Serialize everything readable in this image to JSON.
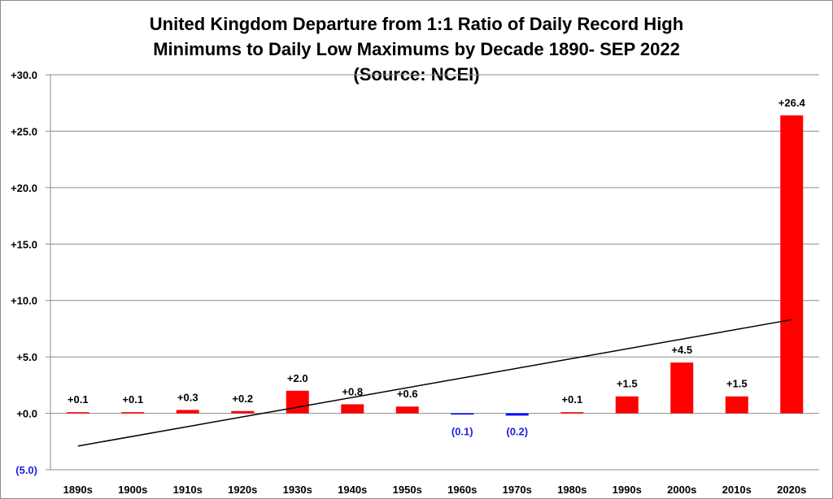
{
  "chart_data": {
    "type": "bar",
    "title_lines": [
      "United Kingdom Departure from 1:1 Ratio of Daily Record High",
      "Minimums to Daily Low Maximums by Decade 1890- SEP 2022",
      "(Source: NCEI)"
    ],
    "categories": [
      "1890s",
      "1900s",
      "1910s",
      "1920s",
      "1930s",
      "1940s",
      "1950s",
      "1960s",
      "1970s",
      "1980s",
      "1990s",
      "2000s",
      "2010s",
      "2020s"
    ],
    "values": [
      0.1,
      0.1,
      0.3,
      0.2,
      2.0,
      0.8,
      0.6,
      -0.1,
      -0.2,
      0.1,
      1.5,
      4.5,
      1.5,
      26.4
    ],
    "data_labels": [
      "+0.1",
      "+0.1",
      "+0.3",
      "+0.2",
      "+2.0",
      "+0.8",
      "+0.6",
      "(0.1)",
      "(0.2)",
      "+0.1",
      "+1.5",
      "+4.5",
      "+1.5",
      "+26.4"
    ],
    "y_ticks": [
      -5,
      0,
      5,
      10,
      15,
      20,
      25,
      30
    ],
    "y_tick_labels": [
      "(5.0)",
      "+0.0",
      "+5.0",
      "+10.0",
      "+15.0",
      "+20.0",
      "+25.0",
      "+30.0"
    ],
    "ylim": [
      -5,
      30
    ],
    "trendline": {
      "start": -2.9,
      "end": 8.3
    },
    "grid": "horizontal",
    "colors": {
      "positive_bar": "#ff0000",
      "negative_bar": "#0000ff",
      "positive_label": "#000000",
      "negative_label": "#2020e0",
      "trendline": "#000000",
      "gridline": "#8c8c8c"
    }
  }
}
